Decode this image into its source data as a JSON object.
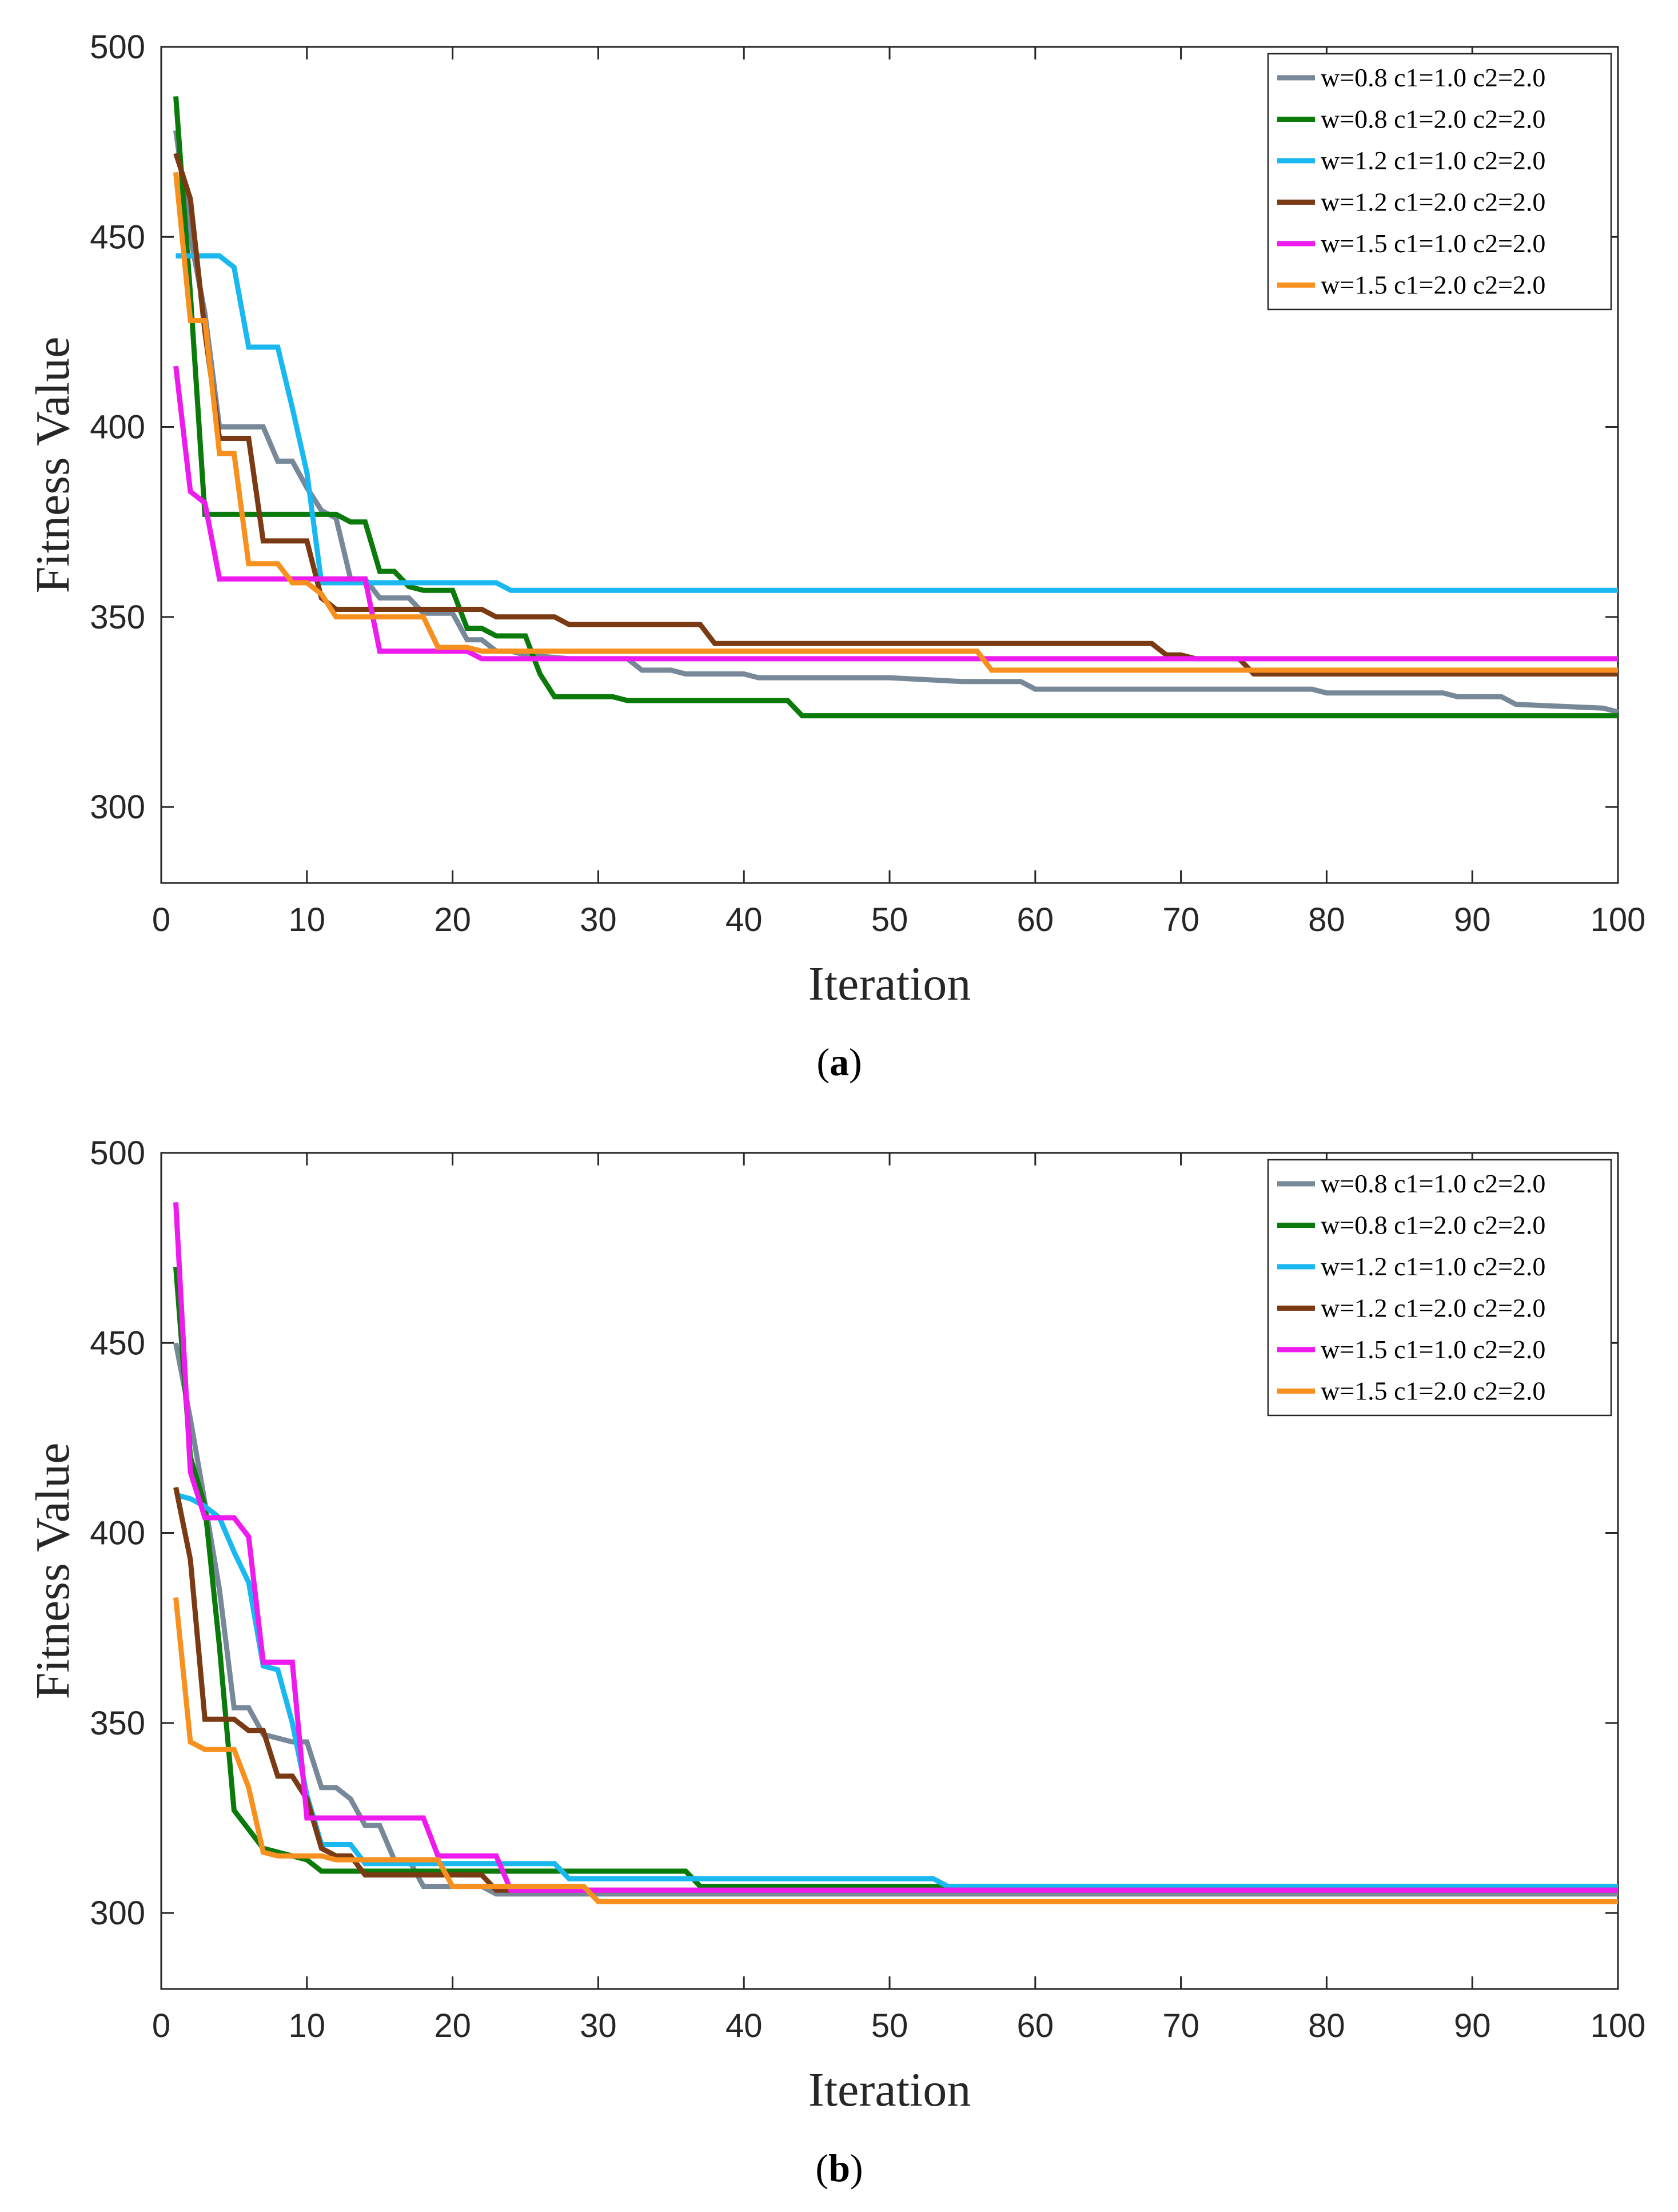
{
  "chart_data": [
    {
      "type": "line",
      "caption": "a",
      "xlabel": "Iteration",
      "ylabel": "Fitness Value",
      "xlim": [
        0,
        100
      ],
      "ylim": [
        280,
        500
      ],
      "xticks": [
        0,
        10,
        20,
        30,
        40,
        50,
        60,
        70,
        80,
        90,
        100
      ],
      "yticks": [
        300,
        350,
        400,
        450,
        500
      ],
      "grid": false,
      "legend_position": "top-right",
      "series": [
        {
          "name": "w=0.8 c1=1.0 c2=2.0",
          "color": "#778899",
          "points": [
            [
              1,
              478
            ],
            [
              2,
              450
            ],
            [
              3,
              430
            ],
            [
              4,
              400
            ],
            [
              7,
              400
            ],
            [
              8,
              391
            ],
            [
              9,
              391
            ],
            [
              10,
              384
            ],
            [
              11,
              378
            ],
            [
              12,
              376
            ],
            [
              13,
              360
            ],
            [
              14,
              360
            ],
            [
              15,
              355
            ],
            [
              17,
              355
            ],
            [
              18,
              351
            ],
            [
              20,
              351
            ],
            [
              21,
              344
            ],
            [
              22,
              344
            ],
            [
              23,
              341
            ],
            [
              24,
              341
            ],
            [
              25,
              340
            ],
            [
              28,
              339
            ],
            [
              32,
              339
            ],
            [
              33,
              336
            ],
            [
              35,
              336
            ],
            [
              36,
              335
            ],
            [
              40,
              335
            ],
            [
              41,
              334
            ],
            [
              50,
              334
            ],
            [
              55,
              333
            ],
            [
              59,
              333
            ],
            [
              60,
              331
            ],
            [
              79,
              331
            ],
            [
              80,
              330
            ],
            [
              88,
              330
            ],
            [
              89,
              329
            ],
            [
              92,
              329
            ],
            [
              93,
              327
            ],
            [
              99,
              326
            ],
            [
              100,
              325
            ]
          ]
        },
        {
          "name": "w=0.8 c1=2.0 c2=2.0",
          "color": "#0a7a0a",
          "points": [
            [
              1,
              487
            ],
            [
              2,
              435
            ],
            [
              3,
              377
            ],
            [
              12,
              377
            ],
            [
              13,
              375
            ],
            [
              14,
              375
            ],
            [
              15,
              362
            ],
            [
              16,
              362
            ],
            [
              17,
              358
            ],
            [
              18,
              357
            ],
            [
              20,
              357
            ],
            [
              21,
              347
            ],
            [
              22,
              347
            ],
            [
              23,
              345
            ],
            [
              25,
              345
            ],
            [
              26,
              335
            ],
            [
              27,
              329
            ],
            [
              31,
              329
            ],
            [
              32,
              328
            ],
            [
              43,
              328
            ],
            [
              44,
              324
            ],
            [
              100,
              324
            ]
          ]
        },
        {
          "name": "w=1.2 c1=1.0 c2=2.0",
          "color": "#1ab8f0",
          "points": [
            [
              1,
              445
            ],
            [
              4,
              445
            ],
            [
              5,
              442
            ],
            [
              6,
              421
            ],
            [
              8,
              421
            ],
            [
              9,
              405
            ],
            [
              10,
              388
            ],
            [
              11,
              359
            ],
            [
              23,
              359
            ],
            [
              24,
              357
            ],
            [
              100,
              357
            ]
          ]
        },
        {
          "name": "w=1.2 c1=2.0 c2=2.0",
          "color": "#7a3a14",
          "points": [
            [
              1,
              472
            ],
            [
              2,
              460
            ],
            [
              3,
              425
            ],
            [
              4,
              397
            ],
            [
              6,
              397
            ],
            [
              7,
              370
            ],
            [
              10,
              370
            ],
            [
              11,
              355
            ],
            [
              12,
              352
            ],
            [
              20,
              352
            ],
            [
              22,
              352
            ],
            [
              23,
              350
            ],
            [
              27,
              350
            ],
            [
              28,
              348
            ],
            [
              37,
              348
            ],
            [
              38,
              343
            ],
            [
              68,
              343
            ],
            [
              69,
              340
            ],
            [
              70,
              340
            ],
            [
              71,
              339
            ],
            [
              74,
              339
            ],
            [
              75,
              335
            ],
            [
              100,
              335
            ]
          ]
        },
        {
          "name": "w=1.5 c1=1.0 c2=2.0",
          "color": "#ee1bee",
          "points": [
            [
              1,
              416
            ],
            [
              2,
              383
            ],
            [
              3,
              380
            ],
            [
              4,
              360
            ],
            [
              14,
              360
            ],
            [
              15,
              341
            ],
            [
              21,
              341
            ],
            [
              22,
              339
            ],
            [
              100,
              339
            ]
          ]
        },
        {
          "name": "w=1.5 c1=2.0 c2=2.0",
          "color": "#f7901e",
          "points": [
            [
              1,
              467
            ],
            [
              2,
              428
            ],
            [
              3,
              428
            ],
            [
              4,
              393
            ],
            [
              5,
              393
            ],
            [
              6,
              364
            ],
            [
              8,
              364
            ],
            [
              9,
              359
            ],
            [
              10,
              359
            ],
            [
              11,
              356
            ],
            [
              12,
              350
            ],
            [
              18,
              350
            ],
            [
              19,
              342
            ],
            [
              21,
              342
            ],
            [
              22,
              341
            ],
            [
              55,
              341
            ],
            [
              56,
              341
            ],
            [
              57,
              336
            ],
            [
              100,
              336
            ]
          ]
        }
      ]
    },
    {
      "type": "line",
      "caption": "b",
      "xlabel": "Iteration",
      "ylabel": "Fitness Value",
      "xlim": [
        0,
        100
      ],
      "ylim": [
        280,
        500
      ],
      "xticks": [
        0,
        10,
        20,
        30,
        40,
        50,
        60,
        70,
        80,
        90,
        100
      ],
      "yticks": [
        300,
        350,
        400,
        450,
        500
      ],
      "grid": false,
      "legend_position": "top-right",
      "series": [
        {
          "name": "w=0.8 c1=1.0 c2=2.0",
          "color": "#778899",
          "points": [
            [
              1,
              450
            ],
            [
              2,
              430
            ],
            [
              3,
              408
            ],
            [
              4,
              385
            ],
            [
              5,
              354
            ],
            [
              6,
              354
            ],
            [
              7,
              347
            ],
            [
              9,
              345
            ],
            [
              10,
              345
            ],
            [
              11,
              333
            ],
            [
              12,
              333
            ],
            [
              13,
              330
            ],
            [
              14,
              323
            ],
            [
              15,
              323
            ],
            [
              16,
              314
            ],
            [
              17,
              314
            ],
            [
              18,
              307
            ],
            [
              22,
              307
            ],
            [
              23,
              305
            ],
            [
              29,
              305
            ],
            [
              30,
              305
            ],
            [
              100,
              305
            ]
          ]
        },
        {
          "name": "w=0.8 c1=2.0 c2=2.0",
          "color": "#0a7a0a",
          "points": [
            [
              1,
              470
            ],
            [
              2,
              420
            ],
            [
              3,
              407
            ],
            [
              4,
              370
            ],
            [
              5,
              327
            ],
            [
              6,
              322
            ],
            [
              7,
              317
            ],
            [
              9,
              315
            ],
            [
              10,
              314
            ],
            [
              11,
              311
            ],
            [
              36,
              311
            ],
            [
              37,
              307
            ],
            [
              100,
              307
            ]
          ]
        },
        {
          "name": "w=1.2 c1=1.0 c2=2.0",
          "color": "#1ab8f0",
          "points": [
            [
              1,
              410
            ],
            [
              2,
              409
            ],
            [
              3,
              407
            ],
            [
              4,
              404
            ],
            [
              5,
              395
            ],
            [
              6,
              387
            ],
            [
              7,
              365
            ],
            [
              8,
              364
            ],
            [
              9,
              350
            ],
            [
              10,
              331
            ],
            [
              11,
              318
            ],
            [
              13,
              318
            ],
            [
              14,
              313
            ],
            [
              27,
              313
            ],
            [
              28,
              309
            ],
            [
              53,
              309
            ],
            [
              54,
              307
            ],
            [
              100,
              307
            ]
          ]
        },
        {
          "name": "w=1.2 c1=2.0 c2=2.0",
          "color": "#7a3a14",
          "points": [
            [
              1,
              412
            ],
            [
              2,
              393
            ],
            [
              3,
              351
            ],
            [
              5,
              351
            ],
            [
              6,
              348
            ],
            [
              7,
              348
            ],
            [
              8,
              336
            ],
            [
              9,
              336
            ],
            [
              10,
              330
            ],
            [
              11,
              317
            ],
            [
              12,
              315
            ],
            [
              13,
              315
            ],
            [
              14,
              310
            ],
            [
              22,
              310
            ],
            [
              23,
              306
            ],
            [
              100,
              306
            ]
          ]
        },
        {
          "name": "w=1.5 c1=1.0 c2=2.0",
          "color": "#ee1bee",
          "points": [
            [
              1,
              487
            ],
            [
              2,
              416
            ],
            [
              3,
              404
            ],
            [
              5,
              404
            ],
            [
              6,
              399
            ],
            [
              7,
              366
            ],
            [
              9,
              366
            ],
            [
              10,
              325
            ],
            [
              18,
              325
            ],
            [
              19,
              315
            ],
            [
              23,
              315
            ],
            [
              24,
              306
            ],
            [
              100,
              306
            ]
          ]
        },
        {
          "name": "w=1.5 c1=2.0 c2=2.0",
          "color": "#f7901e",
          "points": [
            [
              1,
              383
            ],
            [
              2,
              345
            ],
            [
              3,
              343
            ],
            [
              5,
              343
            ],
            [
              6,
              333
            ],
            [
              7,
              316
            ],
            [
              8,
              315
            ],
            [
              11,
              315
            ],
            [
              12,
              314
            ],
            [
              19,
              314
            ],
            [
              20,
              307
            ],
            [
              29,
              307
            ],
            [
              30,
              303
            ],
            [
              100,
              303
            ]
          ]
        }
      ]
    }
  ]
}
